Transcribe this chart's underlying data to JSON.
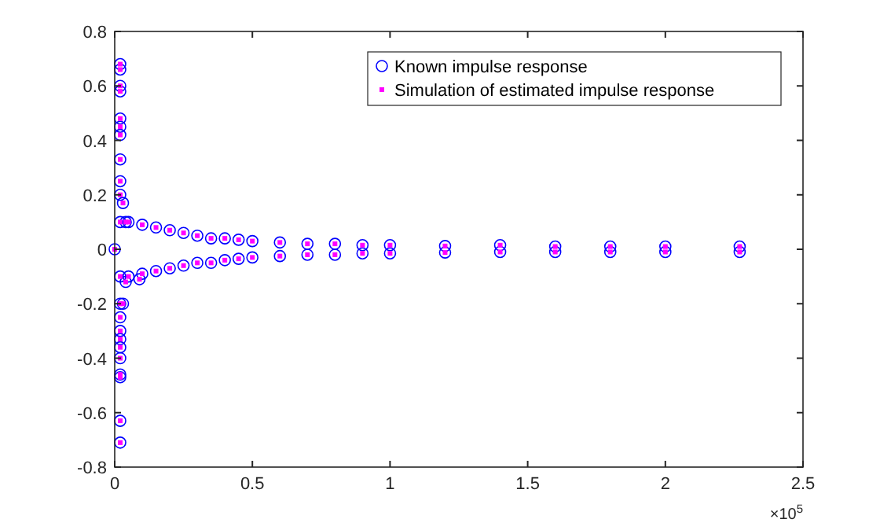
{
  "chart_data": {
    "type": "scatter",
    "x": [
      0,
      0.02,
      0.02,
      0.02,
      0.02,
      0.02,
      0.02,
      0.02,
      0.02,
      0.02,
      0.02,
      0.02,
      0.02,
      0.02,
      0.02,
      0.02,
      0.02,
      0.02,
      0.02,
      0.02,
      0.02,
      0.02,
      0.02,
      0.03,
      0.03,
      0.04,
      0.04,
      0.05,
      0.05,
      0.09,
      0.1,
      0.1,
      0.15,
      0.15,
      0.2,
      0.2,
      0.25,
      0.25,
      0.3,
      0.3,
      0.35,
      0.35,
      0.4,
      0.4,
      0.45,
      0.45,
      0.5,
      0.5,
      0.6,
      0.6,
      0.7,
      0.7,
      0.8,
      0.8,
      0.9,
      0.9,
      1.0,
      1.0,
      1.2,
      1.2,
      1.4,
      1.4,
      1.6,
      1.6,
      1.8,
      1.8,
      2.0,
      2.0,
      2.27,
      2.27
    ],
    "series": [
      {
        "name": "Known impulse response",
        "color": "#0000ff",
        "marker": "circle",
        "values": [
          0,
          0.68,
          -0.71,
          0.66,
          -0.63,
          0.6,
          -0.47,
          0.58,
          -0.46,
          0.48,
          -0.4,
          0.45,
          -0.36,
          0.42,
          -0.33,
          0.33,
          -0.3,
          0.25,
          -0.25,
          0.2,
          -0.2,
          0.1,
          -0.1,
          0.17,
          -0.2,
          0.1,
          -0.12,
          0.1,
          -0.1,
          -0.11,
          0.09,
          -0.09,
          0.08,
          -0.08,
          0.07,
          -0.07,
          0.06,
          -0.06,
          0.05,
          -0.05,
          0.04,
          -0.05,
          0.04,
          -0.04,
          0.035,
          -0.035,
          0.03,
          -0.03,
          0.025,
          -0.025,
          0.02,
          -0.02,
          0.02,
          -0.02,
          0.015,
          -0.015,
          0.015,
          -0.015,
          0.012,
          -0.012,
          0.015,
          -0.01,
          0.01,
          -0.01,
          0.01,
          -0.01,
          0.01,
          -0.01,
          0.01,
          -0.01
        ]
      },
      {
        "name": "Simulation of estimated impulse response",
        "color": "#ff00ff",
        "marker": "square",
        "values": [
          0,
          0.68,
          -0.71,
          0.66,
          -0.63,
          0.6,
          -0.47,
          0.58,
          -0.46,
          0.48,
          -0.4,
          0.45,
          -0.36,
          0.42,
          -0.33,
          0.33,
          -0.3,
          0.25,
          -0.25,
          0.2,
          -0.2,
          0.1,
          -0.1,
          0.17,
          -0.2,
          0.1,
          -0.12,
          0.1,
          -0.1,
          -0.11,
          0.09,
          -0.09,
          0.08,
          -0.08,
          0.07,
          -0.07,
          0.06,
          -0.06,
          0.05,
          -0.05,
          0.04,
          -0.05,
          0.04,
          -0.04,
          0.035,
          -0.035,
          0.03,
          -0.03,
          0.025,
          -0.025,
          0.02,
          -0.02,
          0.02,
          -0.02,
          0.015,
          -0.015,
          0.015,
          -0.015,
          0.012,
          -0.012,
          0.015,
          -0.01,
          0.01,
          -0.01,
          0.01,
          -0.01,
          0.01,
          -0.01,
          0.01,
          -0.01
        ]
      }
    ],
    "xlim": [
      0,
      2.5
    ],
    "xticks": [
      0,
      0.5,
      1,
      1.5,
      2,
      2.5
    ],
    "ylim": [
      -0.8,
      0.8
    ],
    "yticks": [
      -0.8,
      -0.6,
      -0.4,
      -0.2,
      0,
      0.2,
      0.4,
      0.6,
      0.8
    ],
    "annotations": [
      "×10$^{5}$"
    ],
    "legend": "top right",
    "grid": false
  }
}
